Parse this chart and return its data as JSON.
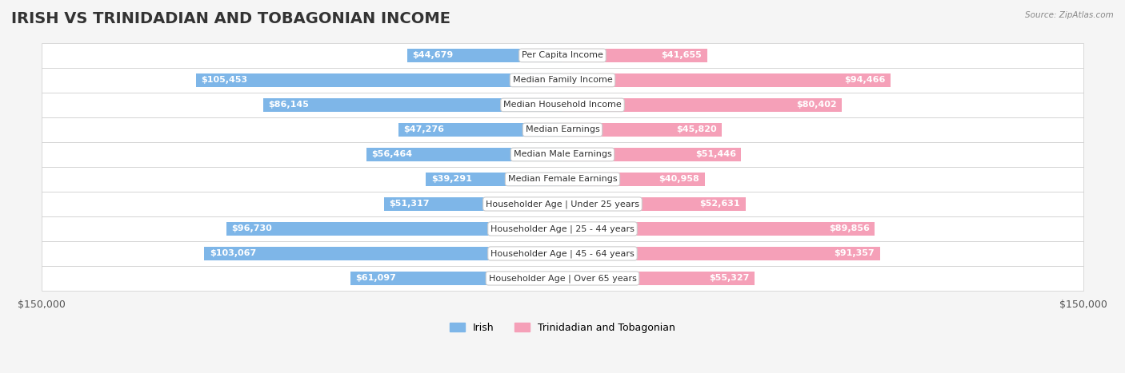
{
  "title": "IRISH VS TRINIDADIAN AND TOBAGONIAN INCOME",
  "source": "Source: ZipAtlas.com",
  "categories": [
    "Per Capita Income",
    "Median Family Income",
    "Median Household Income",
    "Median Earnings",
    "Median Male Earnings",
    "Median Female Earnings",
    "Householder Age | Under 25 years",
    "Householder Age | 25 - 44 years",
    "Householder Age | 45 - 64 years",
    "Householder Age | Over 65 years"
  ],
  "irish_values": [
    44679,
    105453,
    86145,
    47276,
    56464,
    39291,
    51317,
    96730,
    103067,
    61097
  ],
  "tnt_values": [
    41655,
    94466,
    80402,
    45820,
    51446,
    40958,
    52631,
    89856,
    91357,
    55327
  ],
  "irish_labels": [
    "$44,679",
    "$105,453",
    "$86,145",
    "$47,276",
    "$56,464",
    "$39,291",
    "$51,317",
    "$96,730",
    "$103,067",
    "$61,097"
  ],
  "tnt_labels": [
    "$41,655",
    "$94,466",
    "$80,402",
    "$45,820",
    "$51,446",
    "$40,958",
    "$52,631",
    "$89,856",
    "$91,357",
    "$55,327"
  ],
  "irish_color": "#7EB6E8",
  "irish_color_dark": "#5A9FD4",
  "tnt_color": "#F5A0B8",
  "tnt_color_dark": "#E87FA0",
  "max_value": 150000,
  "background_color": "#f5f5f5",
  "row_bg_color": "#ffffff",
  "row_alt_color": "#f0f0f0",
  "label_bg_color": "#ffffff",
  "title_fontsize": 14,
  "axis_label_fontsize": 9,
  "bar_label_fontsize": 8,
  "cat_label_fontsize": 8
}
